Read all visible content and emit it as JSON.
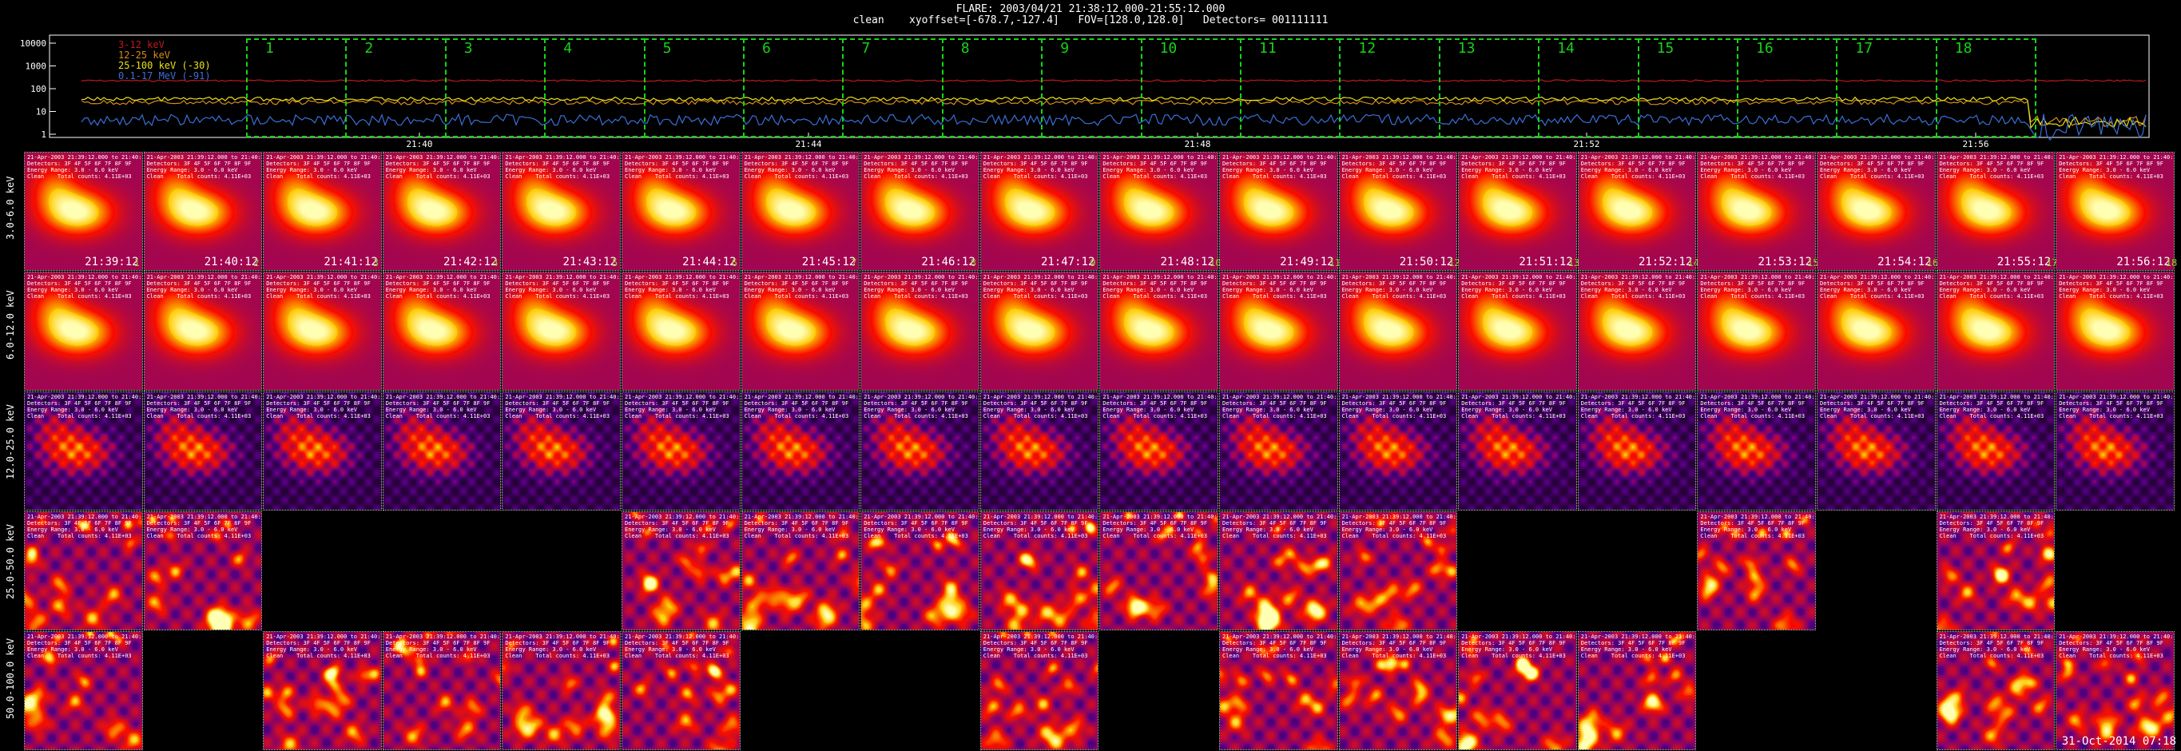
{
  "header": {
    "title": "FLARE: 2003/04/21 21:38:12.000-21:55:12.000",
    "subtitle": "clean    xyoffset=[-678.7,-127.4]   FOV=[128.0,128.0]   Detectors= 001111111"
  },
  "lightcurve": {
    "y_ticks": [
      "10000",
      "1000",
      "100",
      "10",
      "1"
    ],
    "x_ticks": [
      "21:40",
      "21:44",
      "21:48",
      "21:52",
      "21:56"
    ],
    "legend": [
      {
        "label": "3-12 keV",
        "color": "#c0181e"
      },
      {
        "label": "12-25 keV",
        "color": "#d98b1c"
      },
      {
        "label": "25-100 keV (-30)",
        "color": "#e8e018"
      },
      {
        "label": "0.1-17 MeV (-91)",
        "color": "#3a6fd8"
      }
    ],
    "intervals": [
      "1",
      "2",
      "3",
      "4",
      "5",
      "6",
      "7",
      "8",
      "9",
      "10",
      "11",
      "12",
      "13",
      "14",
      "15",
      "16",
      "17",
      "18"
    ]
  },
  "grid": {
    "rows": [
      {
        "label": "3.0-6.0 keV",
        "present": [
          1,
          1,
          1,
          1,
          1,
          1,
          1,
          1,
          1,
          1,
          1,
          1,
          1,
          1,
          1,
          1,
          1,
          1
        ]
      },
      {
        "label": "6.0-12.0 keV",
        "present": [
          1,
          1,
          1,
          1,
          1,
          1,
          1,
          1,
          1,
          1,
          1,
          1,
          1,
          1,
          1,
          1,
          1,
          1
        ]
      },
      {
        "label": "12.0-25.0 keV",
        "present": [
          1,
          1,
          1,
          1,
          1,
          1,
          1,
          1,
          1,
          1,
          1,
          1,
          1,
          1,
          1,
          1,
          1,
          1
        ]
      },
      {
        "label": "25.0-50.0 keV",
        "present": [
          1,
          1,
          0,
          0,
          0,
          1,
          1,
          1,
          1,
          1,
          1,
          1,
          0,
          0,
          1,
          0,
          1,
          0
        ]
      },
      {
        "label": "50.0-100.0 keV",
        "present": [
          1,
          0,
          1,
          1,
          1,
          1,
          0,
          0,
          1,
          0,
          1,
          1,
          1,
          1,
          0,
          0,
          1,
          1
        ]
      }
    ],
    "times": [
      "21:39:12",
      "21:40:12",
      "21:41:12",
      "21:42:12",
      "21:43:12",
      "21:44:12",
      "21:45:12",
      "21:46:12",
      "21:47:12",
      "21:48:12",
      "21:49:12",
      "21:50:12",
      "21:51:12",
      "21:52:12",
      "21:53:12",
      "21:54:12",
      "21:55:12",
      "21:56:12"
    ],
    "numbers": [
      "1",
      "2",
      "3",
      "4",
      "5",
      "6",
      "7",
      "8",
      "9",
      "10",
      "11",
      "12",
      "13",
      "14",
      "15",
      "16",
      "17",
      "18"
    ],
    "info_lines": [
      "21-Apr-2003 21:39:12.000 to 21:40:12",
      "Detectors: 3F 4F 5F 6F 7F 8F 9F",
      "Energy Range: 3.0 - 6.0 keV",
      "Clean    Total counts: 4.11E+03"
    ]
  },
  "footer": "31-Oct-2014 07:18"
}
